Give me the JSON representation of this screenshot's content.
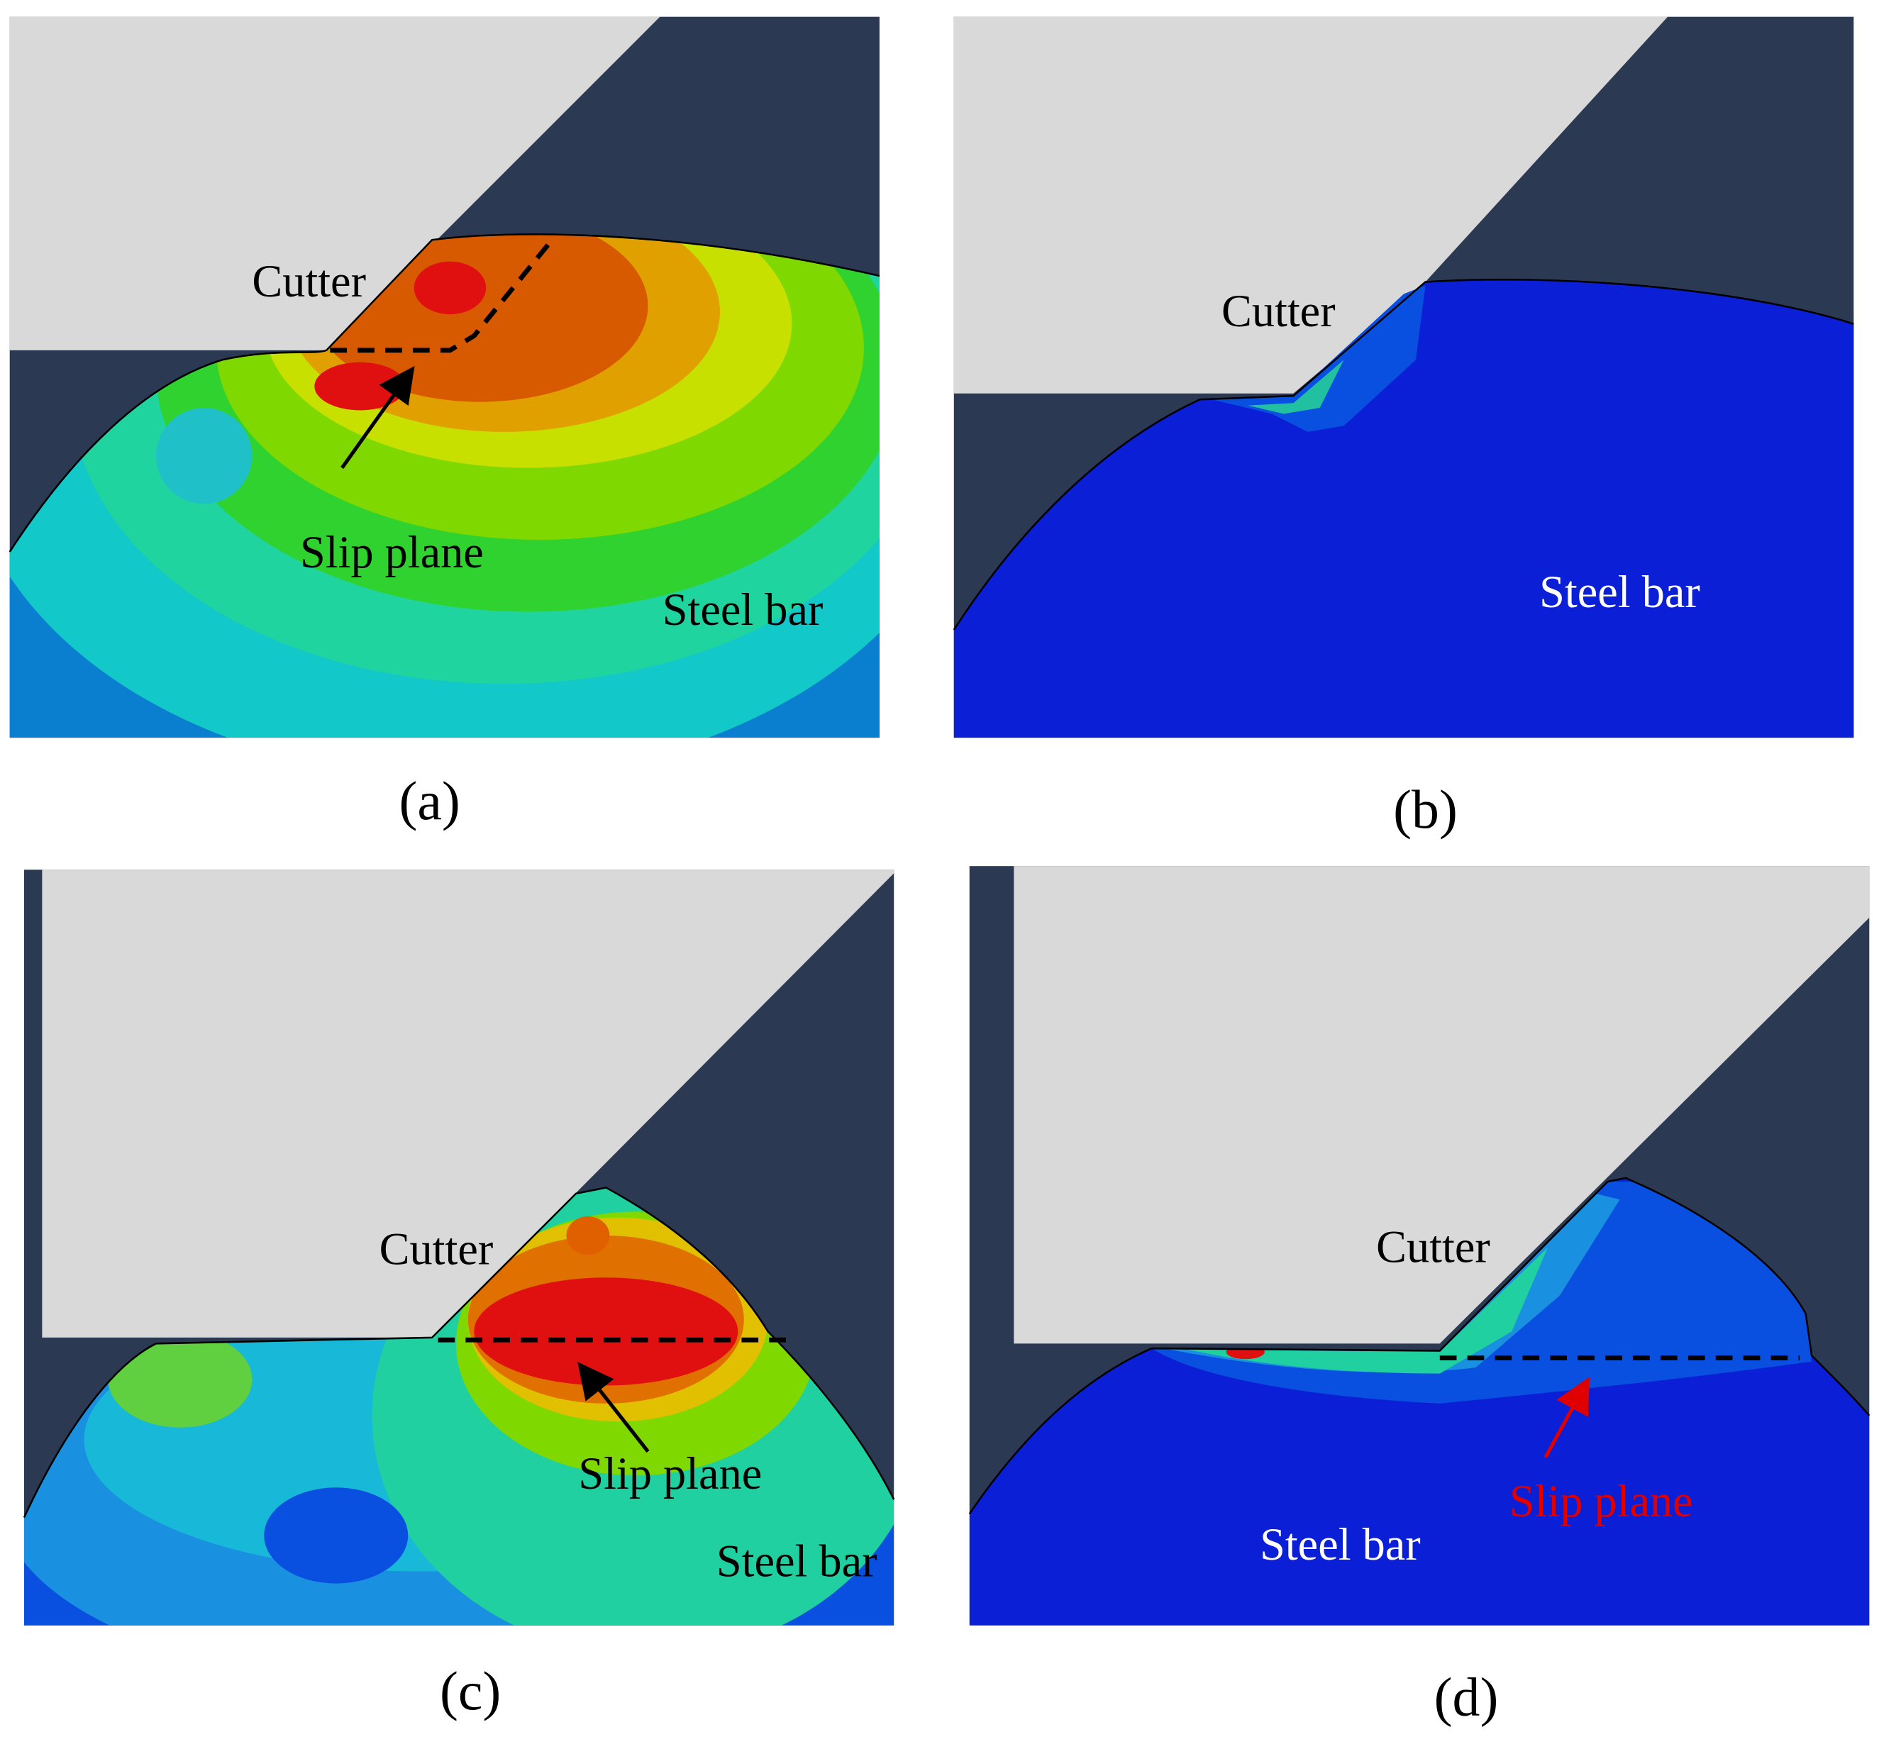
{
  "panels": [
    {
      "label": "(a)",
      "cutter": "Cutter",
      "slip_plane": "Slip plane",
      "steel_bar": "Steel bar"
    },
    {
      "label": "(b)",
      "cutter": "Cutter",
      "steel_bar": "Steel bar"
    },
    {
      "label": "(c)",
      "cutter": "Cutter",
      "slip_plane": "Slip plane",
      "steel_bar": "Steel bar"
    },
    {
      "label": "(d)",
      "cutter": "Cutter",
      "slip_plane": "Slip plane",
      "steel_bar": "Steel bar"
    }
  ]
}
